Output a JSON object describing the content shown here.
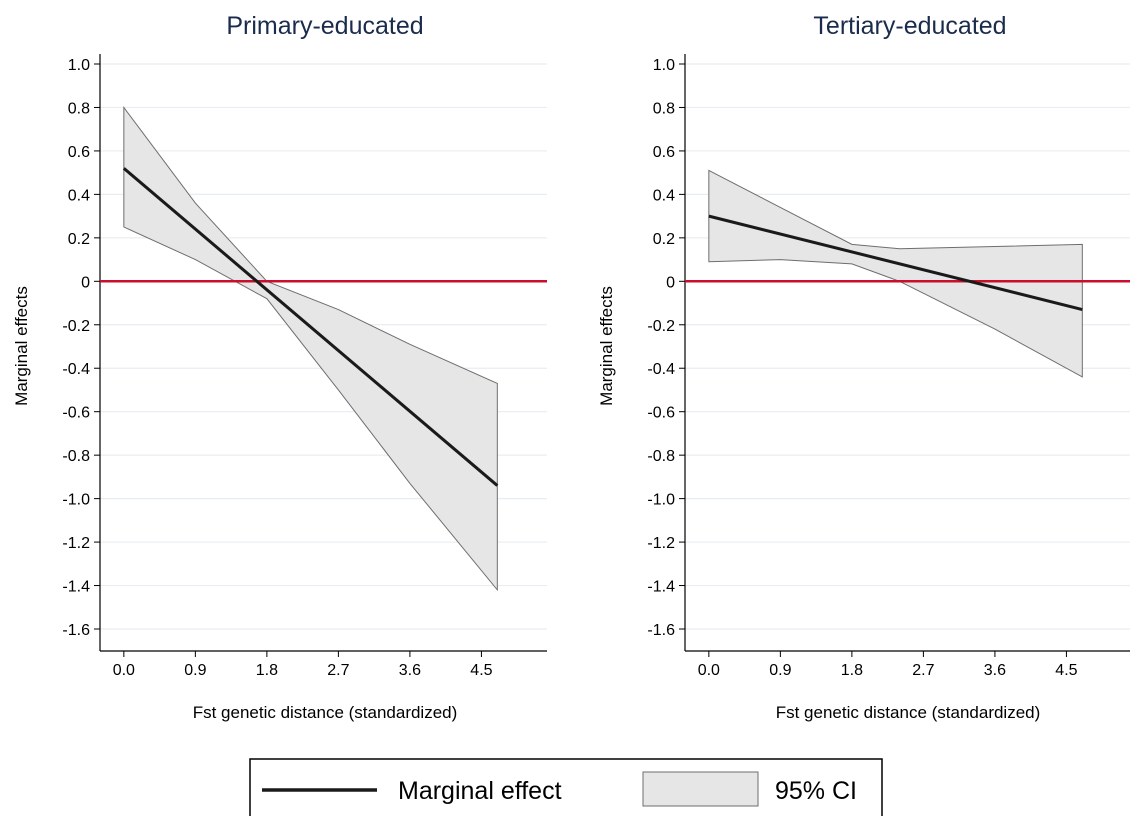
{
  "colors": {
    "line": "#1a1a1a",
    "ci_fill": "#e6e6e6",
    "ci_stroke": "#6e6e6e",
    "zero_line": "#c8102e",
    "grid": "#e8edf2",
    "title": "#1a2b4c"
  },
  "legend": {
    "items": [
      {
        "label": "Marginal effect",
        "symbol": "line"
      },
      {
        "label": "95% CI",
        "symbol": "area"
      }
    ]
  },
  "chart_data": [
    {
      "type": "line",
      "title": "Primary-educated",
      "xlabel": "Fst genetic distance (standardized)",
      "ylabel": "Marginal effects",
      "xlim": [
        -0.3,
        5.3
      ],
      "ylim": [
        -1.6,
        1.0
      ],
      "xticks": [
        "0.0",
        "0.9",
        "1.8",
        "2.7",
        "3.6",
        "4.5"
      ],
      "yticks": [
        "1.0",
        "0.8",
        "0.6",
        "0.4",
        "0.2",
        "0",
        "-0.2",
        "-0.4",
        "-0.6",
        "-0.8",
        "-1.0",
        "-1.2",
        "-1.4",
        "-1.6"
      ],
      "grid": true,
      "reference_line_y": 0,
      "series": [
        {
          "name": "Marginal effect",
          "x": [
            0.0,
            4.7
          ],
          "y": [
            0.52,
            -0.94
          ]
        },
        {
          "name": "95% CI",
          "x": [
            0.0,
            0.9,
            1.8,
            2.7,
            3.6,
            4.7
          ],
          "lower": [
            0.25,
            0.1,
            -0.08,
            -0.5,
            -0.93,
            -1.42
          ],
          "upper": [
            0.8,
            0.36,
            0.0,
            -0.13,
            -0.29,
            -0.47
          ]
        }
      ]
    },
    {
      "type": "line",
      "title": "Tertiary-educated",
      "xlabel": "Fst genetic distance (standardized)",
      "ylabel": "Marginal effects",
      "xlim": [
        -0.3,
        5.3
      ],
      "ylim": [
        -1.6,
        1.0
      ],
      "xticks": [
        "0.0",
        "0.9",
        "1.8",
        "2.7",
        "3.6",
        "4.5"
      ],
      "yticks": [
        "1.0",
        "0.8",
        "0.6",
        "0.4",
        "0.2",
        "0",
        "-0.2",
        "-0.4",
        "-0.6",
        "-0.8",
        "-1.0",
        "-1.2",
        "-1.4",
        "-1.6"
      ],
      "grid": true,
      "reference_line_y": 0,
      "series": [
        {
          "name": "Marginal effect",
          "x": [
            0.0,
            4.7
          ],
          "y": [
            0.3,
            -0.13
          ]
        },
        {
          "name": "95% CI",
          "x": [
            0.0,
            0.9,
            1.8,
            2.4,
            3.6,
            4.7
          ],
          "lower": [
            0.09,
            0.1,
            0.08,
            0.0,
            -0.22,
            -0.44
          ],
          "upper": [
            0.51,
            0.34,
            0.17,
            0.15,
            0.16,
            0.17
          ]
        }
      ]
    }
  ]
}
